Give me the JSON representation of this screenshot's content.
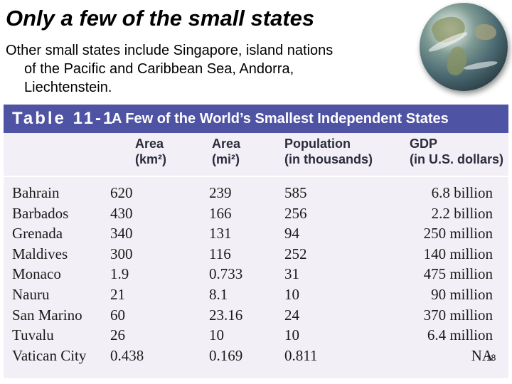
{
  "slide": {
    "title": "Only a few of the small states",
    "subtitle_lines": [
      "Other small states include Singapore, island nations",
      "of the Pacific and Caribbean Sea, Andorra,",
      "Liechtenstein."
    ],
    "page_number": "18"
  },
  "table": {
    "label": "Table 11-1",
    "caption": "A Few of the World’s Smallest Independent States",
    "columns": [
      {
        "line1": "Area",
        "line2": "(km²)"
      },
      {
        "line1": "Area",
        "line2": "(mi²)"
      },
      {
        "line1": "Population",
        "line2": "(in thousands)"
      },
      {
        "line1": "GDP",
        "line2": "(in U.S. dollars)"
      }
    ],
    "rows": [
      {
        "name": "Bahrain",
        "area_km": "620",
        "area_mi": "239",
        "population": "585",
        "gdp": "6.8 billion"
      },
      {
        "name": "Barbados",
        "area_km": "430",
        "area_mi": "166",
        "population": "256",
        "gdp": "2.2 billion"
      },
      {
        "name": "Grenada",
        "area_km": "340",
        "area_mi": "131",
        "population": "94",
        "gdp": "250 million"
      },
      {
        "name": "Maldives",
        "area_km": "300",
        "area_mi": "116",
        "population": "252",
        "gdp": "140 million"
      },
      {
        "name": "Monaco",
        "area_km": "1.9",
        "area_mi": "0.733",
        "population": "31",
        "gdp": "475 million"
      },
      {
        "name": "Nauru",
        "area_km": "21",
        "area_mi": "8.1",
        "population": "10",
        "gdp": "90 million"
      },
      {
        "name": "San Marino",
        "area_km": "60",
        "area_mi": "23.16",
        "population": "24",
        "gdp": "370 million"
      },
      {
        "name": "Tuvalu",
        "area_km": "26",
        "area_mi": "10",
        "population": "10",
        "gdp": "6.4 million"
      },
      {
        "name": "Vatican City",
        "area_km": "0.438",
        "area_mi": "0.169",
        "population": "0.811",
        "gdp": "NA"
      }
    ]
  },
  "colors": {
    "header_bar": "#4f53a3",
    "table_background": "#f2f0f6"
  },
  "icons": {
    "globe": "globe-icon"
  }
}
